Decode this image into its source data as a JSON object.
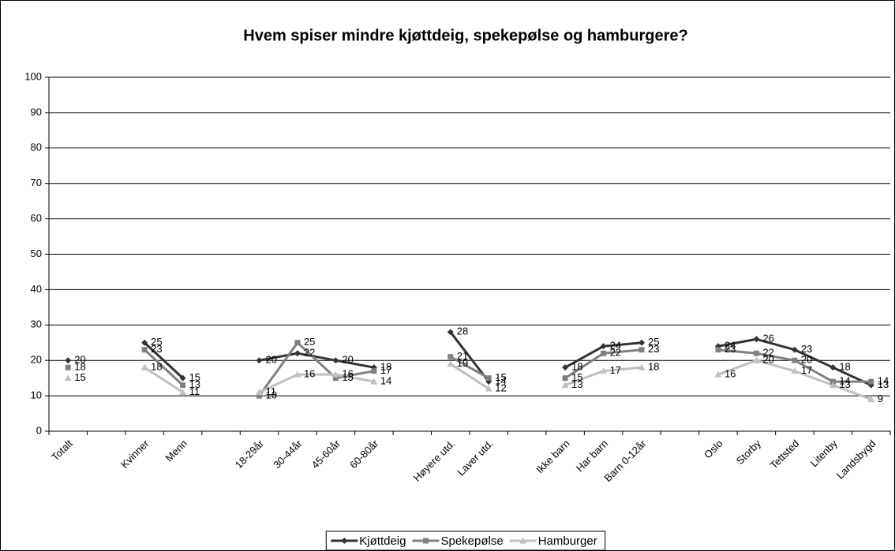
{
  "chart_data": {
    "type": "line",
    "title": "Hvem spiser mindre kjøttdeig, spekepølse og hamburgere?",
    "categories": [
      "Totalt",
      null,
      "Kvinner",
      "Menn",
      null,
      "18-29år",
      "30-44år",
      "45-60år",
      "60-80år",
      null,
      "Høyere utd.",
      "Laver utd.",
      null,
      "Ikke barn",
      "Har barn",
      "Barn 0-12år",
      null,
      "Oslo",
      "Storby",
      "Tettsted",
      "Litenby",
      "Landsbygd"
    ],
    "series": [
      {
        "name": "Kjøttdeig",
        "color": "#333333",
        "marker": "diamond",
        "values": [
          20,
          null,
          25,
          15,
          null,
          20,
          22,
          20,
          18,
          null,
          28,
          14,
          null,
          18,
          24,
          25,
          null,
          24,
          26,
          23,
          18,
          13
        ]
      },
      {
        "name": "Spekepølse",
        "color": "#808080",
        "marker": "square",
        "values": [
          18,
          null,
          23,
          13,
          null,
          10,
          25,
          15,
          17,
          null,
          21,
          15,
          null,
          15,
          22,
          23,
          null,
          23,
          22,
          20,
          14,
          14
        ]
      },
      {
        "name": "Hamburger",
        "color": "#c0c0c0",
        "marker": "triangle",
        "values": [
          15,
          null,
          18,
          11,
          null,
          11,
          16,
          16,
          14,
          null,
          19,
          12,
          null,
          13,
          17,
          18,
          null,
          16,
          20,
          17,
          13,
          9
        ]
      }
    ],
    "ylim": [
      0,
      100
    ],
    "yticks": [
      0,
      10,
      20,
      30,
      40,
      50,
      60,
      70,
      80,
      90,
      100
    ],
    "grid": true,
    "legend": "bottom"
  }
}
